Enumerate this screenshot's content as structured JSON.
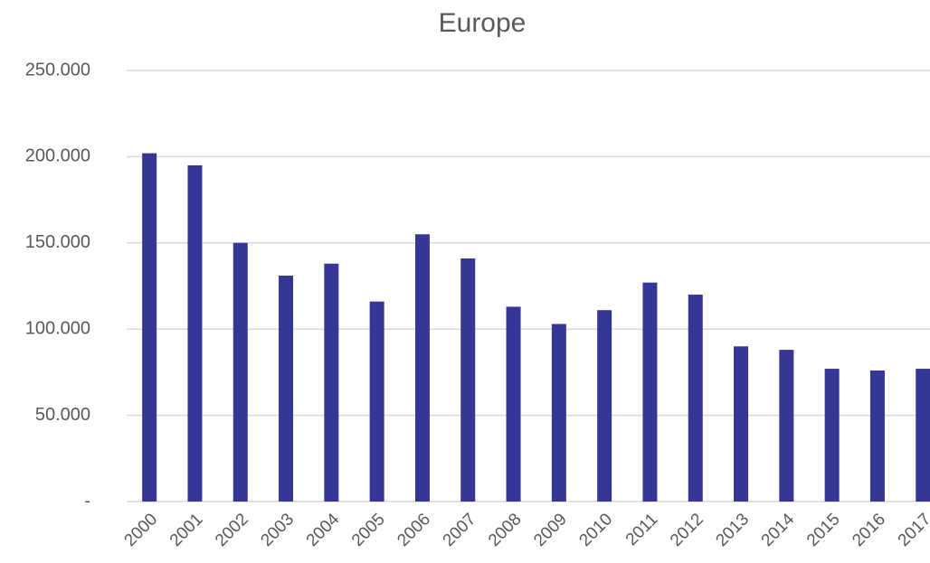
{
  "chart_data": {
    "type": "bar",
    "title": "Europe",
    "categories": [
      "2000",
      "2001",
      "2002",
      "2003",
      "2004",
      "2005",
      "2006",
      "2007",
      "2008",
      "2009",
      "2010",
      "2011",
      "2012",
      "2013",
      "2014",
      "2015",
      "2016",
      "2017"
    ],
    "values": [
      202000,
      195000,
      150000,
      131000,
      138000,
      116000,
      155000,
      141000,
      113000,
      103000,
      111000,
      127000,
      120000,
      90000,
      88000,
      77000,
      76000,
      77000
    ],
    "color": "#363696",
    "ylim": [
      0,
      250000
    ],
    "yticks": [
      {
        "value": 0,
        "label": "-"
      },
      {
        "value": 50000,
        "label": "50.000"
      },
      {
        "value": 100000,
        "label": "100.000"
      },
      {
        "value": 150000,
        "label": "150.000"
      },
      {
        "value": 200000,
        "label": "200.000"
      },
      {
        "value": 250000,
        "label": "250.000"
      }
    ],
    "grid": true
  }
}
